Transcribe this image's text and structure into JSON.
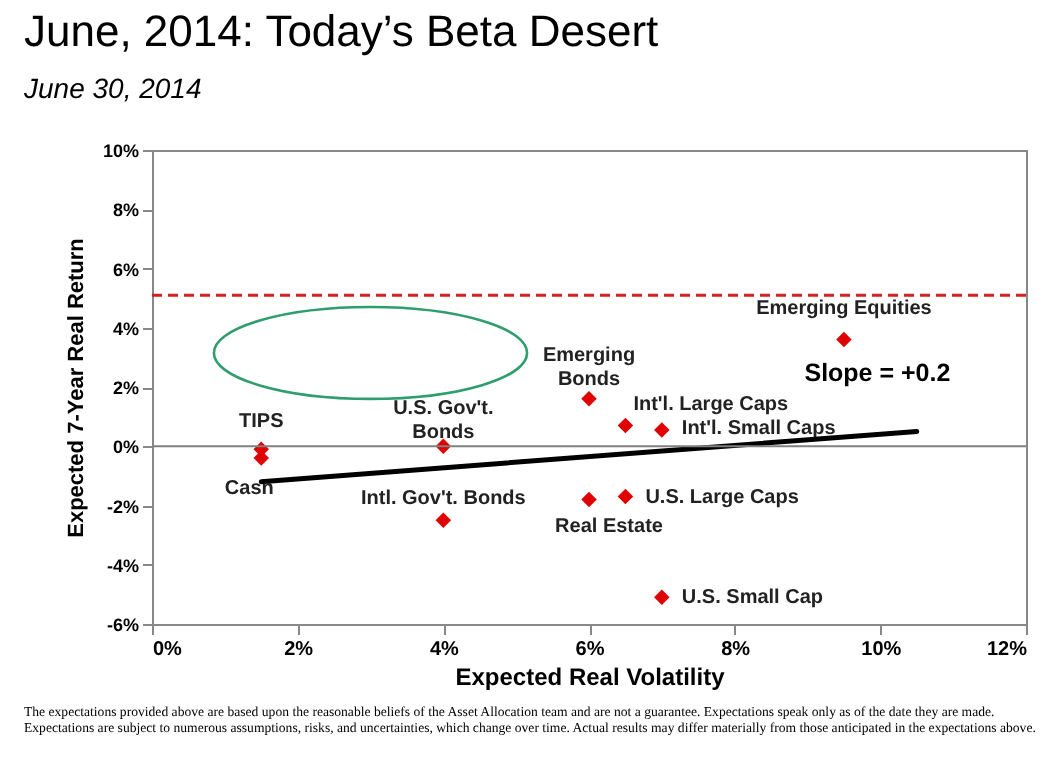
{
  "chart_data": {
    "type": "scatter",
    "title": "June, 2014:   Today’s Beta Desert",
    "subtitle": "June 30, 2014",
    "xlabel": "Expected Real Volatility",
    "ylabel": "Expected 7-Year Real Return",
    "marker": "diamond",
    "xlim": [
      0,
      12
    ],
    "xticks": [
      {
        "value": 0,
        "label": "0%"
      },
      {
        "value": 2,
        "label": "2%"
      },
      {
        "value": 4,
        "label": "4%"
      },
      {
        "value": 6,
        "label": "6%"
      },
      {
        "value": 8,
        "label": "8%"
      },
      {
        "value": 10,
        "label": "10%"
      },
      {
        "value": 12,
        "label": "12%"
      }
    ],
    "ylim": [
      -6,
      10
    ],
    "yticks": [
      {
        "value": -6,
        "label": "-6%"
      },
      {
        "value": -4,
        "label": "-4%"
      },
      {
        "value": -2,
        "label": "-2%"
      },
      {
        "value": 0,
        "label": "0%"
      },
      {
        "value": 2,
        "label": "2%"
      },
      {
        "value": 4,
        "label": "4%"
      },
      {
        "value": 6,
        "label": "6%"
      },
      {
        "value": 8,
        "label": "8%"
      },
      {
        "value": 10,
        "label": "10%"
      }
    ],
    "series": [
      {
        "name": "TIPS",
        "color": "#e00000",
        "x": [
          1.5
        ],
        "values": [
          -0.1
        ]
      },
      {
        "name": "Cash",
        "color": "#e00000",
        "x": [
          1.5
        ],
        "values": [
          -0.4
        ]
      },
      {
        "name": "U.S. Gov't. Bonds",
        "color": "#e00000",
        "x": [
          4.0
        ],
        "values": [
          0.0
        ]
      },
      {
        "name": "Intl. Gov't. Bonds",
        "color": "#e00000",
        "x": [
          4.0
        ],
        "values": [
          -2.5
        ]
      },
      {
        "name": "Emerging Bonds",
        "color": "#e00000",
        "x": [
          6.0
        ],
        "values": [
          1.6
        ]
      },
      {
        "name": "Real Estate",
        "color": "#e00000",
        "x": [
          6.0
        ],
        "values": [
          -1.8
        ]
      },
      {
        "name": "Emerging Equities",
        "color": "#e00000",
        "x": [
          9.5
        ],
        "values": [
          3.6
        ]
      },
      {
        "name": "Int'l. Large Caps",
        "color": "#e00000",
        "x": [
          6.5
        ],
        "values": [
          0.7
        ]
      },
      {
        "name": "Int'l. Small Caps",
        "color": "#e00000",
        "x": [
          7.0
        ],
        "values": [
          0.55
        ]
      },
      {
        "name": "U.S. Large Caps",
        "color": "#e00000",
        "x": [
          6.5
        ],
        "values": [
          -1.7
        ]
      },
      {
        "name": "U.S. Small Cap",
        "color": "#e00000",
        "x": [
          7.0
        ],
        "values": [
          -5.1
        ]
      },
      {
        "type": "line",
        "marker": "none",
        "color": "#000000",
        "x": [
          1.5,
          10.5
        ],
        "values": [
          -1.2,
          0.5
        ]
      }
    ],
    "ref_lines": [
      {
        "axis": "y",
        "value": 5.1,
        "color": "#d42020",
        "line_style": "dashed"
      },
      {
        "axis": "y",
        "value": 0,
        "color": "#808080",
        "line_style": "solid"
      }
    ],
    "annotations": [
      "Slope = +0.2",
      "The expectations provided above are based upon the reasonable beliefs of the Asset Allocation team and are not a guarantee.  Expectations speak only as of the date they are made. Expectations are subject to numerous assumptions, risks, and uncertainties, which change over time. Actual results may differ materially from those anticipated in the expectations above."
    ]
  }
}
